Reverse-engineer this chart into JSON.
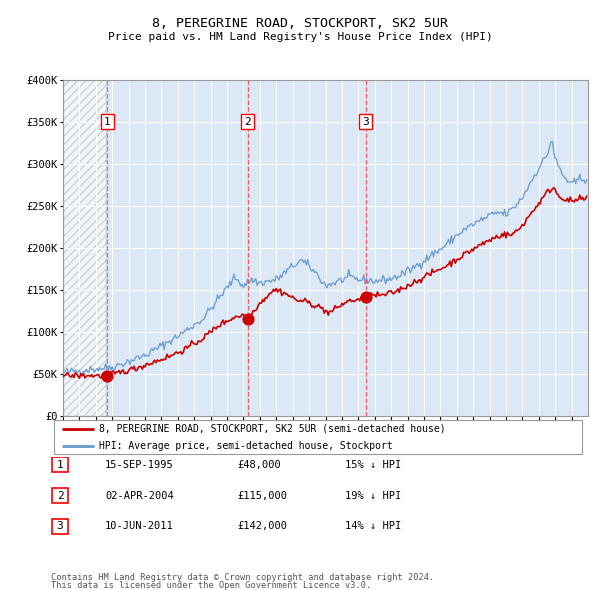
{
  "title1": "8, PEREGRINE ROAD, STOCKPORT, SK2 5UR",
  "title2": "Price paid vs. HM Land Registry's House Price Index (HPI)",
  "legend_line1": "8, PEREGRINE ROAD, STOCKPORT, SK2 5UR (semi-detached house)",
  "legend_line2": "HPI: Average price, semi-detached house, Stockport",
  "footer1": "Contains HM Land Registry data © Crown copyright and database right 2024.",
  "footer2": "This data is licensed under the Open Government Licence v3.0.",
  "sales": [
    {
      "year": 1995.71,
      "price": 48000,
      "label": "1"
    },
    {
      "year": 2004.25,
      "price": 115000,
      "label": "2"
    },
    {
      "year": 2011.44,
      "price": 142000,
      "label": "3"
    }
  ],
  "sale_dates": [
    "15-SEP-1995",
    "02-APR-2004",
    "10-JUN-2011"
  ],
  "sale_prices": [
    "£48,000",
    "£115,000",
    "£142,000"
  ],
  "sale_hpi": [
    "15% ↓ HPI",
    "19% ↓ HPI",
    "14% ↓ HPI"
  ],
  "hpi_color": "#6699cc",
  "price_color": "#cc0000",
  "sale_color": "#cc0000",
  "vline_color_dashed": "#aaaaaa",
  "vline_color_red": "#ff4444",
  "hatch_color": "#bbbbbb",
  "bg_color": "#dce8f5",
  "ylim": [
    0,
    400000
  ],
  "xlim_start": 1993,
  "xlim_end": 2025
}
